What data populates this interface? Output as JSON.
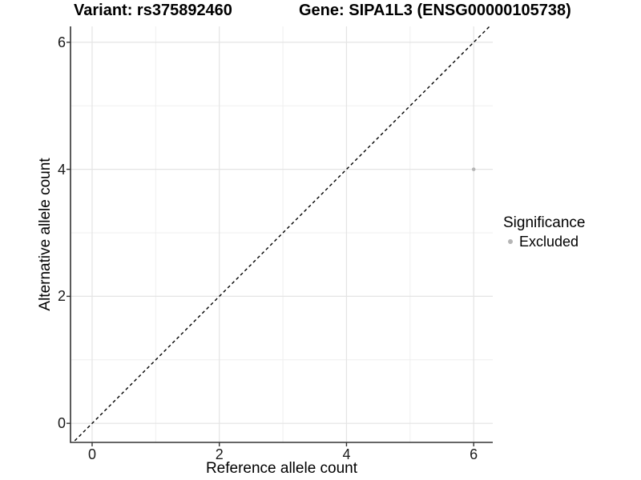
{
  "chart_data": {
    "type": "scatter",
    "titles": {
      "left": "Variant: rs375892460",
      "right": "Gene: SIPA1L3 (ENSG00000105738)"
    },
    "xlabel": "Reference allele count",
    "ylabel": "Alternative allele count",
    "x_ticks": [
      0,
      2,
      4,
      6
    ],
    "y_ticks": [
      0,
      2,
      4,
      6
    ],
    "x_minor_ticks": [
      1,
      3,
      5
    ],
    "y_minor_ticks": [
      1,
      3,
      5
    ],
    "xlim": [
      -0.34,
      6.3
    ],
    "ylim": [
      -0.3,
      6.25
    ],
    "grid": true,
    "points": [
      {
        "x": 6,
        "y": 4,
        "series": "Excluded"
      }
    ],
    "reference_line": {
      "slope": 1,
      "intercept": 0,
      "style": "dashed",
      "color": "#000000"
    },
    "legend": {
      "title": "Significance",
      "position": "right",
      "entries": [
        {
          "label": "Excluded",
          "color": "#b5b5b5"
        }
      ]
    },
    "colors": {
      "background": "#ffffff",
      "grid_major": "#e4e4e4",
      "grid_minor": "#efefef",
      "axis_line": "#333333",
      "tick_mark": "#333333",
      "text": "#000000"
    }
  }
}
